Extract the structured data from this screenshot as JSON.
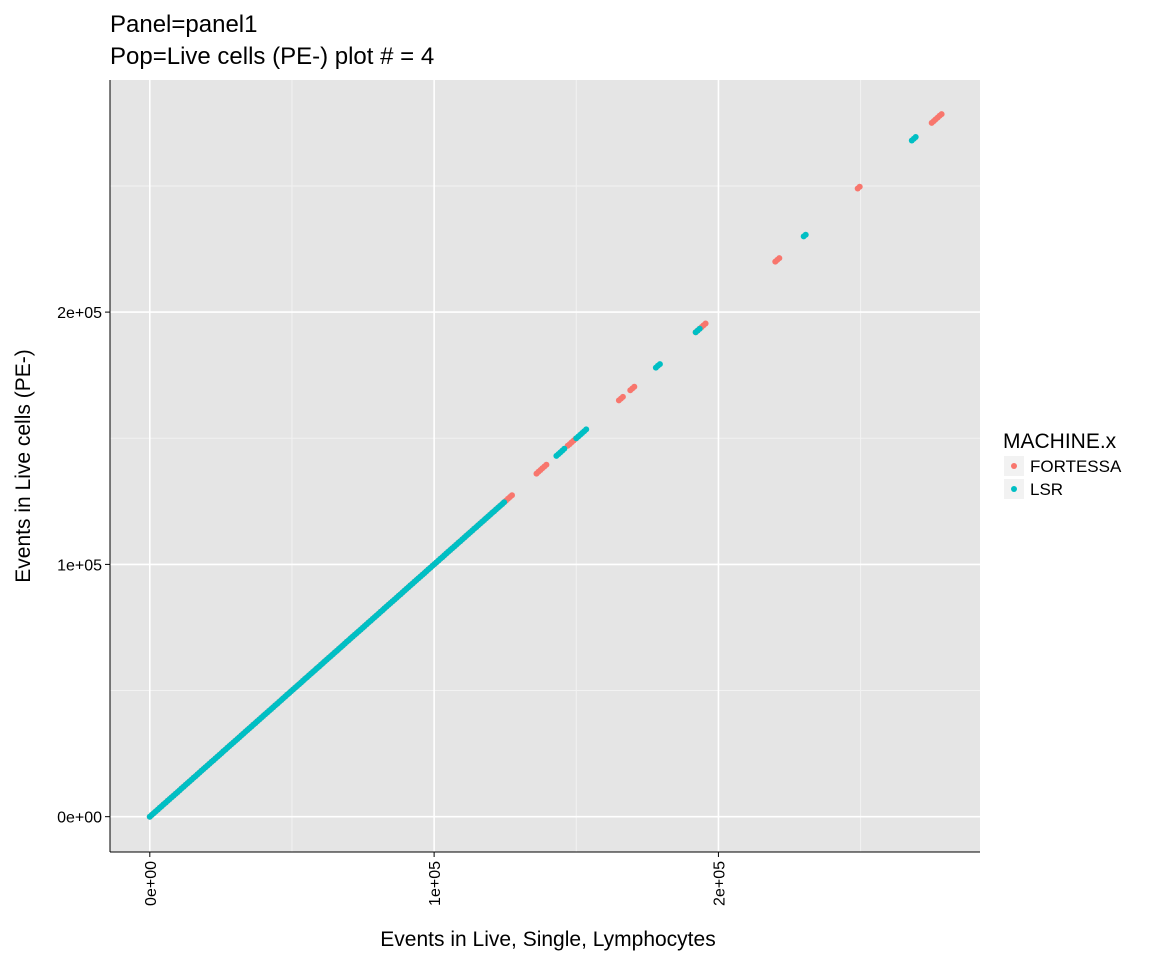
{
  "chart_data": {
    "type": "scatter",
    "title_line1": "Panel=panel1",
    "title_line2": "Pop=Live cells (PE-) plot # = 4",
    "xlabel": "Events in Live, Single, Lymphocytes",
    "ylabel": "Events in Live cells (PE-)",
    "xlim": [
      -14000,
      292000
    ],
    "ylim": [
      -14000,
      292000
    ],
    "x_ticks": [
      {
        "value": 0,
        "label": "0e+00"
      },
      {
        "value": 100000,
        "label": "1e+05"
      },
      {
        "value": 200000,
        "label": "2e+05"
      }
    ],
    "y_ticks": [
      {
        "value": 0,
        "label": "0e+00"
      },
      {
        "value": 100000,
        "label": "1e+05"
      },
      {
        "value": 200000,
        "label": "2e+05"
      }
    ],
    "grid": true,
    "legend": {
      "title": "MACHINE.x",
      "position": "right",
      "entries": [
        "FORTESSA",
        "LSR"
      ]
    },
    "series": [
      {
        "name": "FORTESSA",
        "color": "#F8766D",
        "segments": [
          [
            0,
            128000
          ],
          [
            136000,
            140000
          ],
          [
            147000,
            150000
          ],
          [
            165000,
            167000
          ],
          [
            169000,
            171000
          ],
          [
            192000,
            196000
          ],
          [
            220000,
            222000
          ],
          [
            249000,
            250000
          ],
          [
            275000,
            279000
          ]
        ]
      },
      {
        "name": "LSR",
        "color": "#00BFC4",
        "segments": [
          [
            0,
            125000
          ],
          [
            143000,
            146000
          ],
          [
            150000,
            154000
          ],
          [
            178000,
            180000
          ],
          [
            192000,
            194000
          ],
          [
            230000,
            231000
          ],
          [
            268000,
            270000
          ]
        ]
      }
    ]
  }
}
